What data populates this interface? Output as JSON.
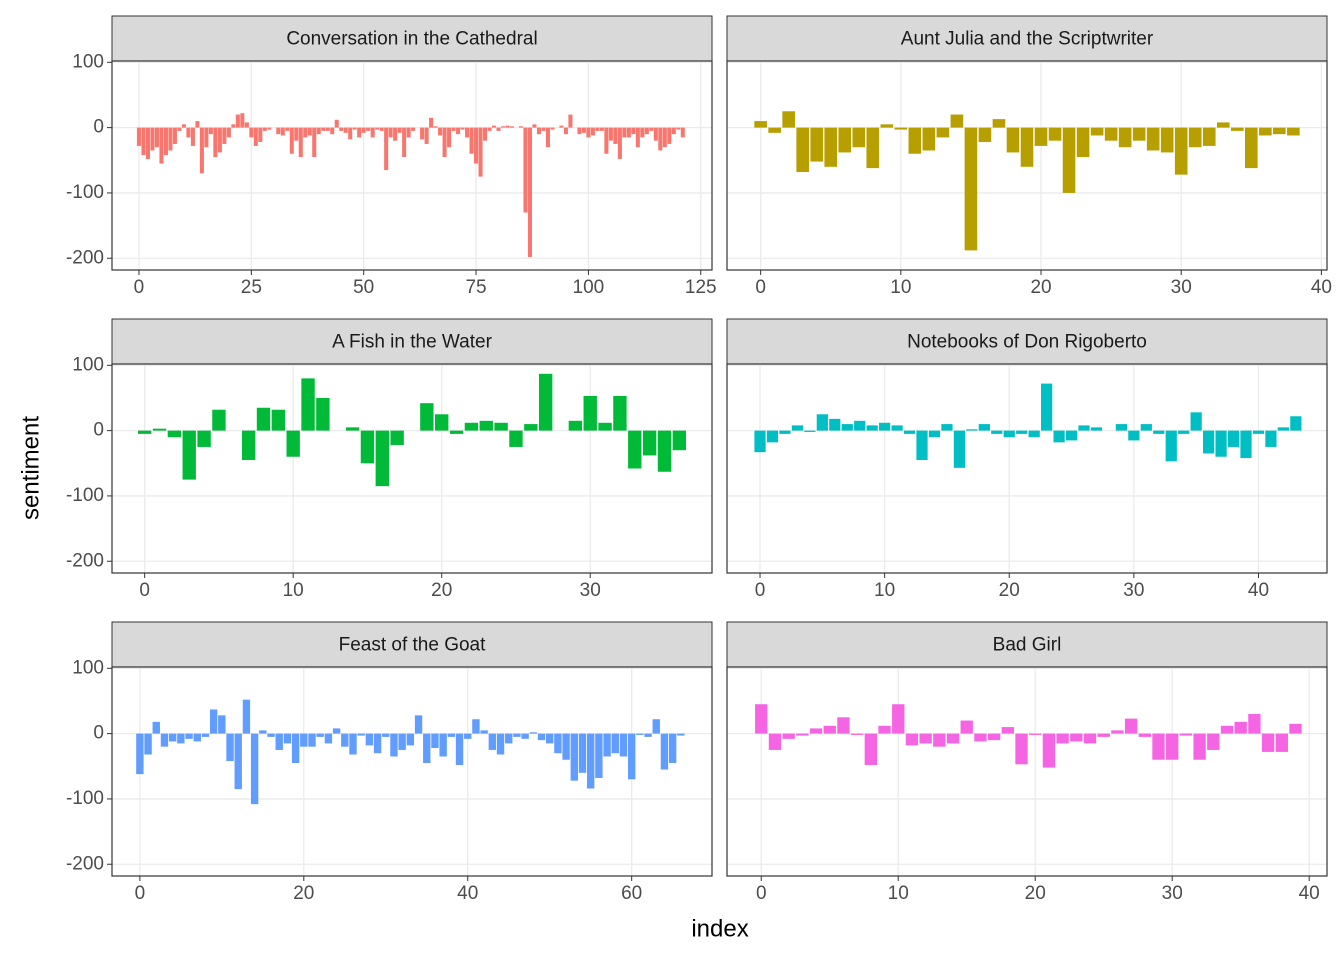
{
  "ylabel": "sentiment",
  "xlabel": "index",
  "chart_data": [
    {
      "type": "bar",
      "title": "Conversation in the Cathedral",
      "color": "#F8766D",
      "grid": true,
      "x": [
        0,
        1,
        2,
        3,
        4,
        5,
        6,
        7,
        8,
        9,
        10,
        11,
        12,
        13,
        14,
        15,
        16,
        17,
        18,
        19,
        20,
        21,
        22,
        23,
        24,
        25,
        26,
        27,
        28,
        29,
        30,
        31,
        32,
        33,
        34,
        35,
        36,
        37,
        38,
        39,
        40,
        41,
        42,
        43,
        44,
        45,
        46,
        47,
        48,
        49,
        50,
        51,
        52,
        53,
        54,
        55,
        56,
        57,
        58,
        59,
        60,
        61,
        62,
        63,
        64,
        65,
        66,
        67,
        68,
        69,
        70,
        71,
        72,
        73,
        74,
        75,
        76,
        77,
        78,
        79,
        80,
        81,
        82,
        83,
        84,
        85,
        86,
        87,
        88,
        89,
        90,
        91,
        92,
        93,
        94,
        95,
        96,
        97,
        98,
        99,
        100,
        101,
        102,
        103,
        104,
        105,
        106,
        107,
        108,
        109,
        110,
        111,
        112,
        113,
        114,
        115,
        116,
        117,
        118,
        119,
        120,
        121
      ],
      "values": [
        -28,
        -42,
        -48,
        -35,
        -30,
        -55,
        -42,
        -35,
        -25,
        -5,
        5,
        -15,
        -28,
        10,
        -70,
        -30,
        -10,
        -45,
        -38,
        -25,
        -15,
        5,
        20,
        22,
        8,
        -15,
        -28,
        -22,
        -5,
        -3,
        0,
        -10,
        -12,
        -5,
        -40,
        -20,
        -45,
        -15,
        -12,
        -45,
        -10,
        -5,
        -5,
        -10,
        12,
        -5,
        -8,
        -18,
        -3,
        -15,
        -8,
        -5,
        -15,
        -3,
        -5,
        -65,
        -15,
        -20,
        -8,
        -45,
        -15,
        -5,
        0,
        -18,
        -25,
        15,
        2,
        -12,
        -45,
        -30,
        -5,
        -10,
        -3,
        -15,
        -40,
        -55,
        -75,
        -20,
        -5,
        3,
        -5,
        2,
        3,
        2,
        0,
        2,
        -130,
        -198,
        5,
        -10,
        -5,
        -30,
        -3,
        0,
        3,
        -10,
        20,
        0,
        -10,
        -8,
        -15,
        -12,
        -5,
        -5,
        -40,
        -20,
        -25,
        -48,
        -15,
        -15,
        -10,
        -30,
        -15,
        -10,
        -5,
        -20,
        -35,
        -30,
        -25,
        -10,
        -3,
        -15
      ],
      "xlim": [
        -6,
        127.5
      ],
      "xticks": [
        0,
        25,
        50,
        75,
        100,
        125
      ],
      "ylim": [
        -218,
        102
      ],
      "yticks": [
        -200,
        -100,
        0,
        100
      ]
    },
    {
      "type": "bar",
      "title": "Aunt Julia and the Scriptwriter",
      "color": "#B79F00",
      "grid": true,
      "x": [
        0,
        1,
        2,
        3,
        4,
        5,
        6,
        7,
        8,
        9,
        10,
        11,
        12,
        13,
        14,
        15,
        16,
        17,
        18,
        19,
        20,
        21,
        22,
        23,
        24,
        25,
        26,
        27,
        28,
        29,
        30,
        31,
        32,
        33,
        34,
        35,
        36,
        37,
        38
      ],
      "values": [
        10,
        -8,
        25,
        -68,
        -52,
        -60,
        -38,
        -30,
        -62,
        5,
        -3,
        -40,
        -35,
        -15,
        20,
        -188,
        -22,
        13,
        -38,
        -60,
        -28,
        -20,
        -100,
        -45,
        -12,
        -20,
        -30,
        -20,
        -35,
        -38,
        -72,
        -30,
        -28,
        8,
        -5,
        -62,
        -12,
        -10,
        -12
      ],
      "xlim": [
        -2.4,
        40.4
      ],
      "xticks": [
        0,
        10,
        20,
        30,
        40
      ],
      "ylim": [
        -218,
        102
      ],
      "yticks": [
        -200,
        -100,
        0,
        100
      ]
    },
    {
      "type": "bar",
      "title": "A Fish in the Water",
      "color": "#00BA38",
      "grid": true,
      "x": [
        0,
        1,
        2,
        3,
        4,
        5,
        6,
        7,
        8,
        9,
        10,
        11,
        12,
        13,
        14,
        15,
        16,
        17,
        18,
        19,
        20,
        21,
        22,
        23,
        24,
        25,
        26,
        27,
        28,
        29,
        30,
        31,
        32,
        33,
        34,
        35,
        36
      ],
      "values": [
        -5,
        3,
        -10,
        -75,
        -25,
        32,
        0,
        -45,
        35,
        32,
        -40,
        80,
        50,
        0,
        5,
        -50,
        -85,
        -22,
        0,
        42,
        25,
        -5,
        12,
        15,
        12,
        -25,
        10,
        87,
        0,
        15,
        53,
        12,
        53,
        -58,
        -38,
        -63,
        -30
      ],
      "xlim": [
        -2.2,
        38.2
      ],
      "xticks": [
        0,
        10,
        20,
        30
      ],
      "ylim": [
        -218,
        102
      ],
      "yticks": [
        -200,
        -100,
        0,
        100
      ]
    },
    {
      "type": "bar",
      "title": "Notebooks of Don Rigoberto",
      "color": "#00BFC4",
      "grid": true,
      "x": [
        0,
        1,
        2,
        3,
        4,
        5,
        6,
        7,
        8,
        9,
        10,
        11,
        12,
        13,
        14,
        15,
        16,
        17,
        18,
        19,
        20,
        21,
        22,
        23,
        24,
        25,
        26,
        27,
        28,
        29,
        30,
        31,
        32,
        33,
        34,
        35,
        36,
        37,
        38,
        39,
        40,
        41,
        42,
        43
      ],
      "values": [
        -33,
        -18,
        -5,
        8,
        -2,
        25,
        18,
        10,
        15,
        8,
        12,
        8,
        -5,
        -45,
        -10,
        10,
        -57,
        2,
        10,
        -5,
        -10,
        -5,
        -10,
        72,
        -18,
        -15,
        8,
        5,
        0,
        10,
        -15,
        10,
        -5,
        -47,
        -5,
        28,
        -35,
        -40,
        -25,
        -42,
        -5,
        -25,
        5,
        22
      ],
      "xlim": [
        -2.65,
        45.5
      ],
      "xticks": [
        0,
        10,
        20,
        30,
        40
      ],
      "ylim": [
        -218,
        102
      ],
      "yticks": [
        -200,
        -100,
        0,
        100
      ]
    },
    {
      "type": "bar",
      "title": "Feast of the Goat",
      "color": "#619CFF",
      "grid": true,
      "x": [
        0,
        1,
        2,
        3,
        4,
        5,
        6,
        7,
        8,
        9,
        10,
        11,
        12,
        13,
        14,
        15,
        16,
        17,
        18,
        19,
        20,
        21,
        22,
        23,
        24,
        25,
        26,
        27,
        28,
        29,
        30,
        31,
        32,
        33,
        34,
        35,
        36,
        37,
        38,
        39,
        40,
        41,
        42,
        43,
        44,
        45,
        46,
        47,
        48,
        49,
        50,
        51,
        52,
        53,
        54,
        55,
        56,
        57,
        58,
        59,
        60,
        61,
        62,
        63,
        64,
        65,
        66
      ],
      "values": [
        -62,
        -32,
        18,
        -20,
        -12,
        -15,
        -8,
        -12,
        -5,
        37,
        28,
        -42,
        -85,
        52,
        -108,
        5,
        -5,
        -25,
        -15,
        -45,
        -20,
        -20,
        -5,
        -15,
        8,
        -20,
        -32,
        -3,
        -18,
        -30,
        -5,
        -35,
        -25,
        -18,
        28,
        -45,
        -22,
        -35,
        -5,
        -48,
        -8,
        22,
        5,
        -25,
        -32,
        -15,
        -5,
        -8,
        2,
        -10,
        -15,
        -30,
        -40,
        -72,
        -60,
        -84,
        -68,
        -35,
        -30,
        -35,
        -70,
        -2,
        -5,
        22,
        -55,
        -45,
        -3
      ],
      "xlim": [
        -3.4,
        69.8
      ],
      "xticks": [
        0,
        20,
        40,
        60
      ],
      "ylim": [
        -218,
        102
      ],
      "yticks": [
        -200,
        -100,
        0,
        100
      ]
    },
    {
      "type": "bar",
      "title": "Bad Girl",
      "color": "#F564E3",
      "grid": true,
      "x": [
        0,
        1,
        2,
        3,
        4,
        5,
        6,
        7,
        8,
        9,
        10,
        11,
        12,
        13,
        14,
        15,
        16,
        17,
        18,
        19,
        20,
        21,
        22,
        23,
        24,
        25,
        26,
        27,
        28,
        29,
        30,
        31,
        32,
        33,
        34,
        35,
        36,
        37,
        38,
        39
      ],
      "values": [
        45,
        -25,
        -8,
        -3,
        8,
        12,
        25,
        -2,
        -48,
        12,
        45,
        -18,
        -15,
        -20,
        -15,
        20,
        -12,
        -10,
        10,
        -47,
        -2,
        -52,
        -15,
        -12,
        -15,
        -5,
        5,
        23,
        -5,
        -40,
        -40,
        -3,
        -40,
        -25,
        12,
        18,
        30,
        -28,
        -28,
        15
      ],
      "xlim": [
        -2.5,
        41.3
      ],
      "xticks": [
        0,
        10,
        20,
        30,
        40
      ],
      "ylim": [
        -218,
        102
      ],
      "yticks": [
        -200,
        -100,
        0,
        100
      ]
    }
  ]
}
